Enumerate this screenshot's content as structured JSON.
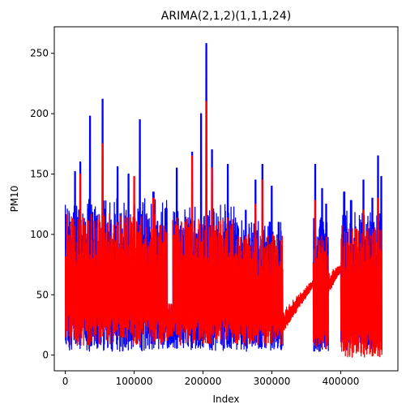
{
  "chart_data": {
    "type": "line",
    "title": "ARIMA(2,1,2)(1,1,1,24)",
    "xlabel": "Index",
    "ylabel": "PM10",
    "xlim": [
      -16000,
      483000
    ],
    "ylim": [
      -13,
      272
    ],
    "xticks": [
      0,
      100000,
      200000,
      300000,
      400000
    ],
    "yticks": [
      0,
      50,
      100,
      150,
      200,
      250
    ],
    "grid": false,
    "legend": "none",
    "series": [
      {
        "color": "#0000ff",
        "segments": [
          {
            "x0": 0,
            "x1": 148000,
            "lo": 3,
            "hi": 130,
            "seed": 11,
            "peaks": [
              [
                14000,
                152
              ],
              [
                22000,
                160
              ],
              [
                36000,
                198
              ],
              [
                54000,
                212
              ],
              [
                76000,
                156
              ],
              [
                92000,
                150
              ],
              [
                108000,
                195
              ],
              [
                128000,
                135
              ]
            ]
          },
          {
            "x0": 148000,
            "x1": 156000,
            "lo": 5,
            "hi": 40,
            "seed": 12,
            "peaks": []
          },
          {
            "x0": 156000,
            "x1": 248000,
            "lo": 3,
            "hi": 125,
            "seed": 13,
            "peaks": [
              [
                162000,
                155
              ],
              [
                184000,
                168
              ],
              [
                197000,
                200
              ],
              [
                205000,
                258
              ],
              [
                213000,
                170
              ],
              [
                236000,
                158
              ]
            ]
          },
          {
            "x0": 248000,
            "x1": 316000,
            "lo": 3,
            "hi": 112,
            "seed": 14,
            "peaks": [
              [
                262000,
                120
              ],
              [
                276000,
                145
              ],
              [
                286000,
                158
              ],
              [
                300000,
                140
              ],
              [
                310000,
                110
              ]
            ]
          },
          {
            "x0": 360000,
            "x1": 382000,
            "lo": 3,
            "hi": 115,
            "seed": 15,
            "peaks": [
              [
                363000,
                158
              ],
              [
                373000,
                138
              ],
              [
                379000,
                125
              ]
            ]
          },
          {
            "x0": 400000,
            "x1": 460000,
            "lo": 3,
            "hi": 120,
            "seed": 16,
            "peaks": [
              [
                405000,
                135
              ],
              [
                415000,
                128
              ],
              [
                433000,
                145
              ],
              [
                446000,
                130
              ],
              [
                454000,
                165
              ],
              [
                459000,
                148
              ]
            ]
          }
        ]
      },
      {
        "color": "#ff0000",
        "segments": [
          {
            "x0": 0,
            "x1": 148000,
            "lo": 8,
            "hi": 118,
            "seed": 21,
            "peaks": [
              [
                22000,
                150
              ],
              [
                54000,
                175
              ],
              [
                100000,
                148
              ],
              [
                128000,
                130
              ]
            ]
          },
          {
            "x0": 148000,
            "x1": 156000,
            "lo": 15,
            "hi": 45,
            "seed": 22,
            "peaks": []
          },
          {
            "x0": 156000,
            "x1": 248000,
            "lo": 8,
            "hi": 115,
            "seed": 23,
            "peaks": [
              [
                184000,
                165
              ],
              [
                205000,
                210
              ],
              [
                213000,
                155
              ]
            ]
          },
          {
            "x0": 248000,
            "x1": 316000,
            "lo": 8,
            "hi": 100,
            "seed": 24,
            "peaks": [
              [
                276000,
                125
              ],
              [
                286000,
                145
              ]
            ]
          },
          {
            "x0": 316000,
            "x1": 360000,
            "lo": 28,
            "hi": 60,
            "seed": 25,
            "ramp": true,
            "peaks": []
          },
          {
            "x0": 360000,
            "x1": 382000,
            "lo": 5,
            "hi": 100,
            "seed": 26,
            "peaks": [
              [
                363000,
                128
              ]
            ]
          },
          {
            "x0": 382000,
            "x1": 400000,
            "lo": 60,
            "hi": 72,
            "seed": 27,
            "ramp": true,
            "peaks": []
          },
          {
            "x0": 400000,
            "x1": 460000,
            "lo": -2,
            "hi": 108,
            "seed": 28,
            "peaks": [
              [
                433000,
                120
              ],
              [
                454000,
                130
              ]
            ]
          }
        ]
      }
    ]
  }
}
